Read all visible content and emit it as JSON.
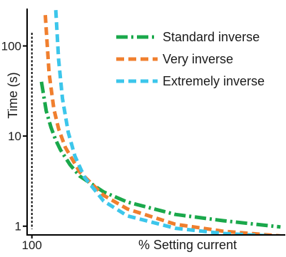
{
  "chart_data": {
    "type": "line",
    "title": "",
    "xlabel": "% Setting current",
    "ylabel": "Time (s)",
    "y_scale": "log",
    "x_ticks": [
      {
        "value": 100,
        "label": "100"
      }
    ],
    "y_ticks": [
      {
        "value": 1,
        "label": "1"
      },
      {
        "value": 10,
        "label": "10"
      },
      {
        "value": 100,
        "label": "100"
      }
    ],
    "xlim": [
      95,
      365
    ],
    "ylim": [
      0.8,
      260
    ],
    "reference_line": {
      "x": 100,
      "style": "dotted",
      "color": "#000000"
    },
    "legend_position": "top-right",
    "series": [
      {
        "name": "Standard inverse",
        "color": "#1aa84b",
        "dash": "dash-dot",
        "x": [
          110,
          115,
          120,
          125,
          130,
          140,
          150,
          175,
          200,
          250,
          300,
          360
        ],
        "y": [
          40.0,
          19.0,
          12.5,
          9.0,
          7.0,
          4.8,
          3.6,
          2.4,
          1.85,
          1.35,
          1.15,
          0.98
        ]
      },
      {
        "name": "Very inverse",
        "color": "#f07f2e",
        "dash": "dashed",
        "x": [
          114,
          118,
          123,
          128,
          135,
          150,
          175,
          200,
          250,
          300,
          360
        ],
        "y": [
          220.0,
          50.0,
          20.0,
          12.0,
          7.5,
          4.0,
          2.2,
          1.55,
          1.05,
          0.88,
          0.78
        ]
      },
      {
        "name": "Extremely inverse",
        "color": "#3cc6eb",
        "dash": "dashed",
        "x": [
          125,
          128,
          132,
          138,
          145,
          155,
          175,
          200,
          250,
          300,
          360
        ],
        "y": [
          250.0,
          70.0,
          26.0,
          11.0,
          6.0,
          3.5,
          1.9,
          1.3,
          0.95,
          0.83,
          0.77
        ]
      }
    ]
  }
}
